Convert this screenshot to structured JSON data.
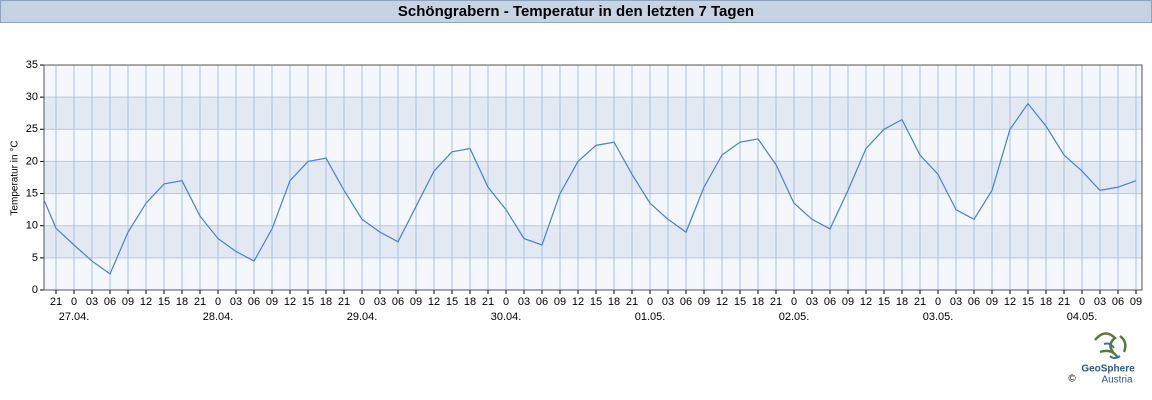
{
  "chart_data": {
    "type": "line",
    "title": "Schöngrabern - Temperatur in den letzten 7 Tagen",
    "y_label": "Temperatur in °C",
    "x": [
      0,
      2,
      5,
      8,
      11,
      14,
      17,
      20,
      23,
      26,
      29,
      32,
      35,
      38,
      41,
      44,
      47,
      50,
      53,
      56,
      59,
      62,
      65,
      68,
      71,
      74,
      77,
      80,
      83,
      86,
      89,
      92,
      95,
      98,
      101,
      104,
      107,
      110,
      113,
      116,
      119,
      122,
      125,
      128,
      131,
      134,
      137,
      140,
      143,
      146,
      149,
      152,
      155,
      158,
      161,
      164,
      167,
      170,
      173,
      176,
      179,
      182
    ],
    "series": [
      {
        "name": "Temperatur",
        "color": "#4a7fd6",
        "values": [
          14,
          9.6,
          7,
          4.5,
          2.5,
          9,
          13.5,
          16.5,
          17,
          11.5,
          8,
          6,
          4.5,
          9.5,
          17,
          20,
          20.5,
          15.5,
          11,
          9,
          7.5,
          13,
          18.5,
          21.5,
          22,
          16,
          12.5,
          8,
          7,
          15,
          20,
          22.5,
          23,
          18,
          13.5,
          11,
          9,
          16,
          21,
          23,
          23.5,
          19.5,
          13.5,
          11,
          9.5,
          15.5,
          22,
          25,
          26.5,
          21,
          18,
          12.5,
          11,
          15.5,
          25,
          29,
          25.5,
          21,
          18.5,
          15.5,
          16,
          17
        ]
      }
    ],
    "xlim": [
      0,
      183
    ],
    "xticks": [
      {
        "value": 2,
        "label": "21"
      },
      {
        "value": 5,
        "label": "0"
      },
      {
        "value": 8,
        "label": "03"
      },
      {
        "value": 11,
        "label": "06"
      },
      {
        "value": 14,
        "label": "09"
      },
      {
        "value": 17,
        "label": "12"
      },
      {
        "value": 20,
        "label": "15"
      },
      {
        "value": 23,
        "label": "18"
      },
      {
        "value": 26,
        "label": "21"
      },
      {
        "value": 29,
        "label": "0"
      },
      {
        "value": 32,
        "label": "03"
      },
      {
        "value": 35,
        "label": "06"
      },
      {
        "value": 38,
        "label": "09"
      },
      {
        "value": 41,
        "label": "12"
      },
      {
        "value": 44,
        "label": "15"
      },
      {
        "value": 47,
        "label": "18"
      },
      {
        "value": 50,
        "label": "21"
      },
      {
        "value": 53,
        "label": "0"
      },
      {
        "value": 56,
        "label": "03"
      },
      {
        "value": 59,
        "label": "06"
      },
      {
        "value": 62,
        "label": "09"
      },
      {
        "value": 65,
        "label": "12"
      },
      {
        "value": 68,
        "label": "15"
      },
      {
        "value": 71,
        "label": "18"
      },
      {
        "value": 74,
        "label": "21"
      },
      {
        "value": 77,
        "label": "0"
      },
      {
        "value": 80,
        "label": "03"
      },
      {
        "value": 83,
        "label": "06"
      },
      {
        "value": 86,
        "label": "09"
      },
      {
        "value": 89,
        "label": "12"
      },
      {
        "value": 92,
        "label": "15"
      },
      {
        "value": 95,
        "label": "18"
      },
      {
        "value": 98,
        "label": "21"
      },
      {
        "value": 101,
        "label": "0"
      },
      {
        "value": 104,
        "label": "03"
      },
      {
        "value": 107,
        "label": "06"
      },
      {
        "value": 110,
        "label": "09"
      },
      {
        "value": 113,
        "label": "12"
      },
      {
        "value": 116,
        "label": "15"
      },
      {
        "value": 119,
        "label": "18"
      },
      {
        "value": 122,
        "label": "21"
      },
      {
        "value": 125,
        "label": "0"
      },
      {
        "value": 128,
        "label": "03"
      },
      {
        "value": 131,
        "label": "06"
      },
      {
        "value": 134,
        "label": "09"
      },
      {
        "value": 137,
        "label": "12"
      },
      {
        "value": 140,
        "label": "15"
      },
      {
        "value": 143,
        "label": "18"
      },
      {
        "value": 146,
        "label": "21"
      },
      {
        "value": 149,
        "label": "0"
      },
      {
        "value": 152,
        "label": "03"
      },
      {
        "value": 155,
        "label": "06"
      },
      {
        "value": 158,
        "label": "09"
      },
      {
        "value": 161,
        "label": "12"
      },
      {
        "value": 164,
        "label": "15"
      },
      {
        "value": 167,
        "label": "18"
      },
      {
        "value": 170,
        "label": "21"
      },
      {
        "value": 173,
        "label": "0"
      },
      {
        "value": 176,
        "label": "03"
      },
      {
        "value": 179,
        "label": "06"
      },
      {
        "value": 182,
        "label": "09"
      }
    ],
    "date_labels": [
      {
        "value": 5,
        "label": "27.04."
      },
      {
        "value": 29,
        "label": "28.04."
      },
      {
        "value": 53,
        "label": "29.04."
      },
      {
        "value": 77,
        "label": "30.04."
      },
      {
        "value": 101,
        "label": "01.05."
      },
      {
        "value": 125,
        "label": "02.05."
      },
      {
        "value": 149,
        "label": "03.05."
      },
      {
        "value": 173,
        "label": "04.05."
      }
    ],
    "ylim": [
      0,
      35
    ],
    "yticks": [
      0,
      5,
      10,
      15,
      20,
      25,
      30,
      35
    ],
    "grid": true,
    "logo": {
      "name": "GeoSphere",
      "sub": "Austria",
      "copyright": "©"
    }
  }
}
